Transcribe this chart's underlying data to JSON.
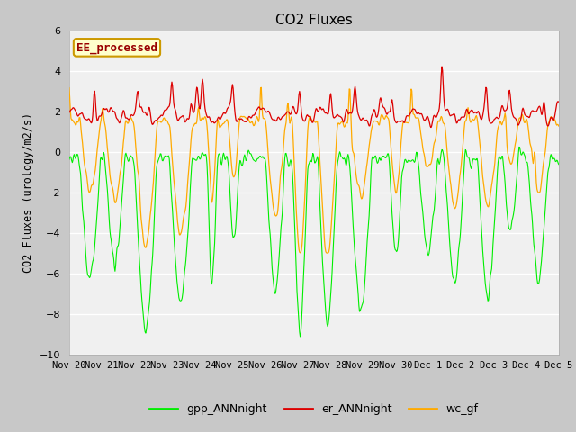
{
  "title": "CO2 Fluxes",
  "ylabel": "CO2 Fluxes (urology/m2/s)",
  "ylim": [
    -10,
    6
  ],
  "yticks": [
    -10,
    -8,
    -6,
    -4,
    -2,
    0,
    2,
    4,
    6
  ],
  "fig_bg": "#c8c8c8",
  "plot_bg": "#f0f0f0",
  "grid_color": "white",
  "colors": {
    "gpp": "#00ee00",
    "er": "#dd0000",
    "wc": "#ffaa00"
  },
  "legend_labels": [
    "gpp_ANNnight",
    "er_ANNnight",
    "wc_gf"
  ],
  "watermark": "EE_processed",
  "n_days": 16,
  "n_per_day": 48,
  "seed": 42
}
